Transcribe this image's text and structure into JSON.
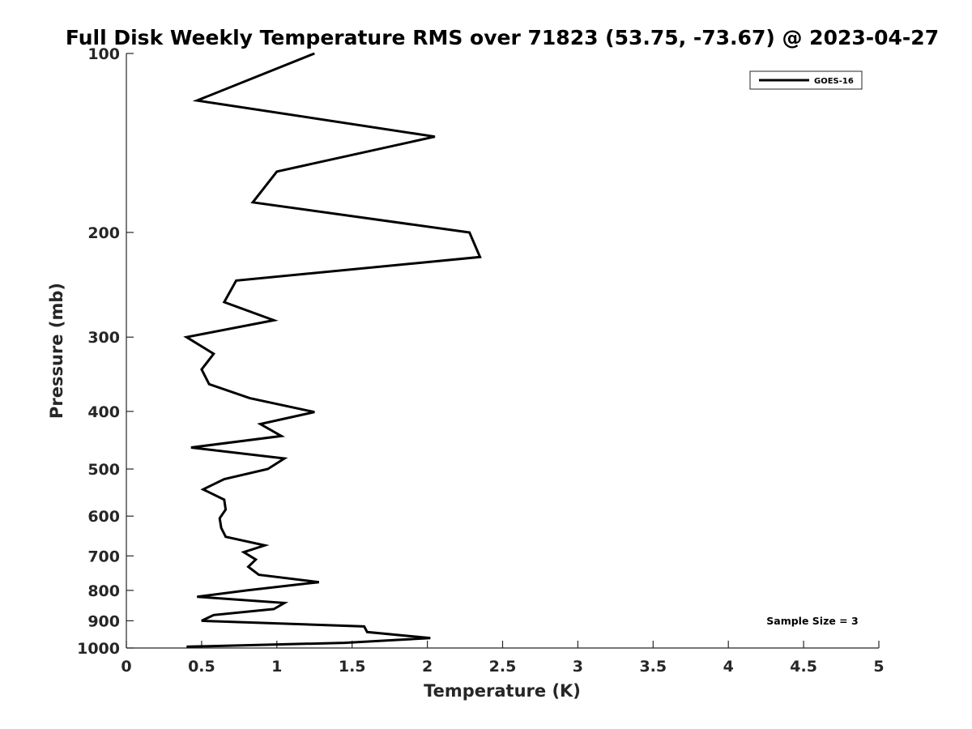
{
  "chart_data": {
    "type": "line",
    "title": "Full Disk Weekly Temperature RMS over 71823 (53.75, -73.67) @ 2023-04-27",
    "xlabel": "Temperature (K)",
    "ylabel": "Pressure (mb)",
    "xlim": [
      0,
      5
    ],
    "ylim": [
      100,
      1000
    ],
    "y_scale": "log",
    "y_reversed": true,
    "grid": false,
    "legend_position": "top-right",
    "x_ticks": [
      "0",
      "0.5",
      "1",
      "1.5",
      "2",
      "2.5",
      "3",
      "3.5",
      "4",
      "4.5",
      "5"
    ],
    "y_ticks": [
      "100",
      "200",
      "300",
      "400",
      "500",
      "600",
      "700",
      "800",
      "900",
      "1000"
    ],
    "series": [
      {
        "name": "GOES-16",
        "color": "#000000",
        "points": [
          [
            1.25,
            100
          ],
          [
            0.47,
            120
          ],
          [
            2.05,
            138
          ],
          [
            1.0,
            158
          ],
          [
            0.84,
            178
          ],
          [
            2.28,
            200
          ],
          [
            2.35,
            220
          ],
          [
            0.73,
            241
          ],
          [
            0.65,
            262
          ],
          [
            0.98,
            281
          ],
          [
            0.4,
            300
          ],
          [
            0.58,
            320
          ],
          [
            0.5,
            340
          ],
          [
            0.55,
            360
          ],
          [
            0.82,
            380
          ],
          [
            1.25,
            401
          ],
          [
            0.89,
            420
          ],
          [
            1.03,
            440
          ],
          [
            0.43,
            460
          ],
          [
            1.05,
            480
          ],
          [
            0.94,
            500
          ],
          [
            0.65,
            520
          ],
          [
            0.51,
            541
          ],
          [
            0.65,
            563
          ],
          [
            0.66,
            585
          ],
          [
            0.62,
            605
          ],
          [
            0.63,
            628
          ],
          [
            0.66,
            650
          ],
          [
            0.92,
            672
          ],
          [
            0.78,
            690
          ],
          [
            0.86,
            710
          ],
          [
            0.81,
            730
          ],
          [
            0.88,
            753
          ],
          [
            1.28,
            775
          ],
          [
            0.8,
            800
          ],
          [
            0.47,
            820
          ],
          [
            1.05,
            840
          ],
          [
            0.98,
            860
          ],
          [
            0.58,
            880
          ],
          [
            0.5,
            900
          ],
          [
            1.58,
            920
          ],
          [
            1.6,
            940
          ],
          [
            2.02,
            962
          ],
          [
            1.45,
            980
          ],
          [
            0.4,
            995
          ]
        ]
      }
    ],
    "annotations": [
      "Sample Size = 3"
    ]
  }
}
